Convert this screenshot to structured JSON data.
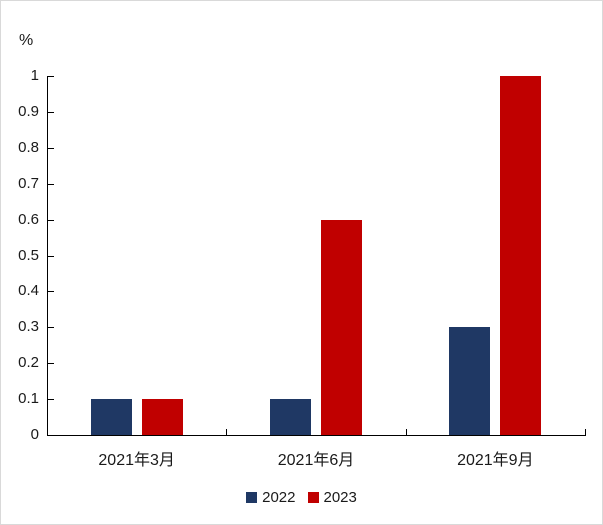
{
  "chart_data": {
    "type": "bar",
    "title": "",
    "ylabel": "%",
    "xlabel": "",
    "categories": [
      "2021年3月",
      "2021年6月",
      "2021年9月"
    ],
    "series": [
      {
        "name": "2022",
        "color": "#1f3864",
        "values": [
          0.1,
          0.1,
          0.3
        ]
      },
      {
        "name": "2023",
        "color": "#c00000",
        "values": [
          0.1,
          0.6,
          1.0
        ]
      }
    ],
    "ylim": [
      0,
      1
    ],
    "ytick_labels": [
      "0",
      "0.1",
      "0.2",
      "0.3",
      "0.4",
      "0.5",
      "0.6",
      "0.7",
      "0.8",
      "0.9",
      "1"
    ],
    "grid": false,
    "legend_position": "bottom",
    "axis_color": "#000000",
    "text_color": "#1a1a1a",
    "frame_border_color": "#d9d9d9"
  }
}
